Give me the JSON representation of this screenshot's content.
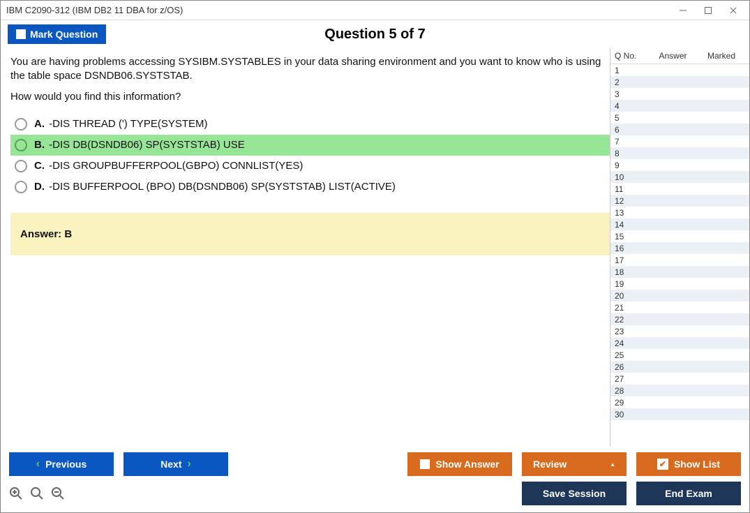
{
  "window": {
    "title": "IBM C2090-312 (IBM DB2 11 DBA for z/OS)"
  },
  "toolbar": {
    "mark_label": "Mark Question"
  },
  "header": {
    "question_counter": "Question 5 of 7"
  },
  "question": {
    "text": "You are having problems accessing SYSIBM.SYSTABLES in your data sharing environment and you want to know who is using the table space DSNDB06.SYSTSTAB.",
    "subtext": "How would you find this information?",
    "options": [
      {
        "letter": "A.",
        "text": "-DIS THREAD (') TYPE(SYSTEM)",
        "correct": false
      },
      {
        "letter": "B.",
        "text": "-DIS DB(DSNDB06) SP(SYSTSTAB) USE",
        "correct": true
      },
      {
        "letter": "C.",
        "text": "-DIS GROUPBUFFERPOOL(GBPO) CONNLIST(YES)",
        "correct": false
      },
      {
        "letter": "D.",
        "text": "-DIS BUFFERPOOL (BPO) DB(DSNDB06) SP(SYSTSTAB) LIST(ACTIVE)",
        "correct": false
      }
    ],
    "answer_display": "Answer: B"
  },
  "sidebar": {
    "headers": {
      "qno": "Q No.",
      "answer": "Answer",
      "marked": "Marked"
    },
    "total_rows": 30
  },
  "footer": {
    "previous": "Previous",
    "next": "Next",
    "show_answer": "Show Answer",
    "review": "Review",
    "show_list": "Show List",
    "save_session": "Save Session",
    "end_exam": "End Exam"
  },
  "colors": {
    "blue": "#0a57c2",
    "orange": "#d86a1e",
    "navy": "#1d3557",
    "correct_bg": "#97e697",
    "answer_bg": "#faf3c0"
  }
}
